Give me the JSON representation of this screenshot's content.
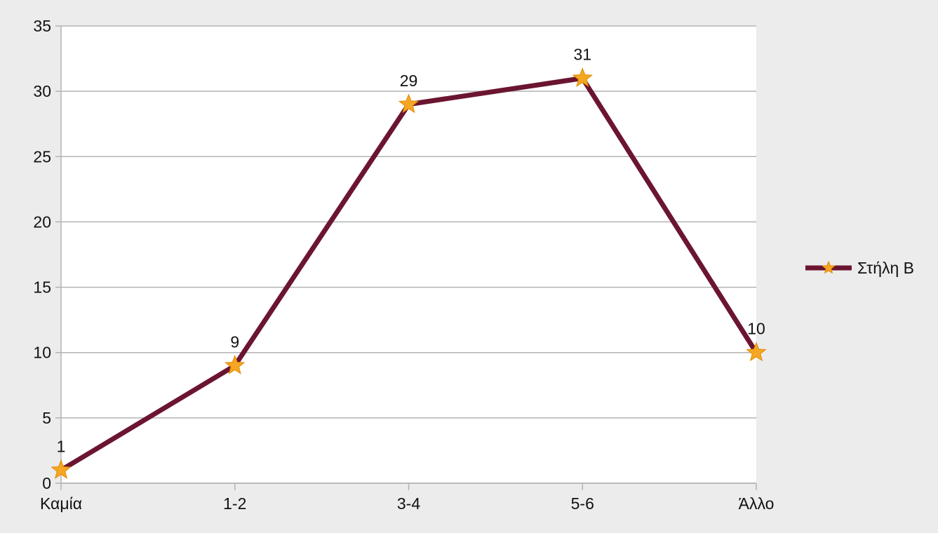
{
  "chart_data": {
    "type": "line",
    "categories": [
      "Καμία",
      "1-2",
      "3-4",
      "5-6",
      "Άλλο"
    ],
    "series": [
      {
        "name": "Στήλη B",
        "values": [
          1,
          9,
          29,
          31,
          10
        ],
        "line_color": "#6b1530",
        "marker": "star",
        "marker_color": "#f5a623"
      }
    ],
    "y_ticks": [
      0,
      5,
      10,
      15,
      20,
      25,
      30,
      35
    ],
    "ylim": [
      0,
      35
    ],
    "data_labels": true,
    "grid": "horizontal",
    "legend_position": "right",
    "colors": {
      "background": "#ececec",
      "plot_background": "#ffffff",
      "gridline": "#b3b3b3",
      "axis": "#b3b3b3"
    }
  }
}
